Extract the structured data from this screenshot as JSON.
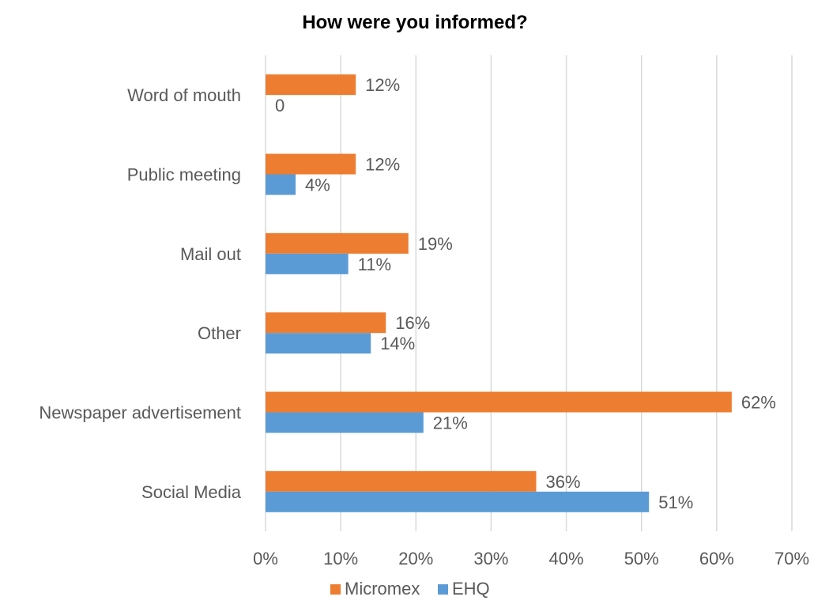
{
  "chart_data": {
    "type": "bar",
    "orientation": "horizontal",
    "title": "How were you informed?",
    "xlabel": "",
    "ylabel": "",
    "categories": [
      "Word of mouth",
      "Public meeting",
      "Mail out",
      "Other",
      "Newspaper advertisement",
      "Social Media"
    ],
    "series": [
      {
        "name": "Micromex",
        "color": "#ED7D31",
        "values": [
          12,
          12,
          19,
          16,
          62,
          36
        ],
        "labels": [
          "12%",
          "12%",
          "19%",
          "16%",
          "62%",
          "36%"
        ]
      },
      {
        "name": "EHQ",
        "color": "#5B9BD5",
        "values": [
          0,
          4,
          11,
          14,
          21,
          51
        ],
        "labels": [
          "0",
          "4%",
          "11%",
          "14%",
          "21%",
          "51%"
        ]
      }
    ],
    "xlim": [
      0,
      70
    ],
    "xticks": [
      0,
      10,
      20,
      30,
      40,
      50,
      60,
      70
    ],
    "xtick_labels": [
      "0%",
      "10%",
      "20%",
      "30%",
      "40%",
      "50%",
      "60%",
      "70%"
    ],
    "grid": "vertical",
    "legend": "bottom",
    "colors": {
      "grid": "#D9D9D9",
      "text": "#595959",
      "title": "#000000"
    }
  }
}
